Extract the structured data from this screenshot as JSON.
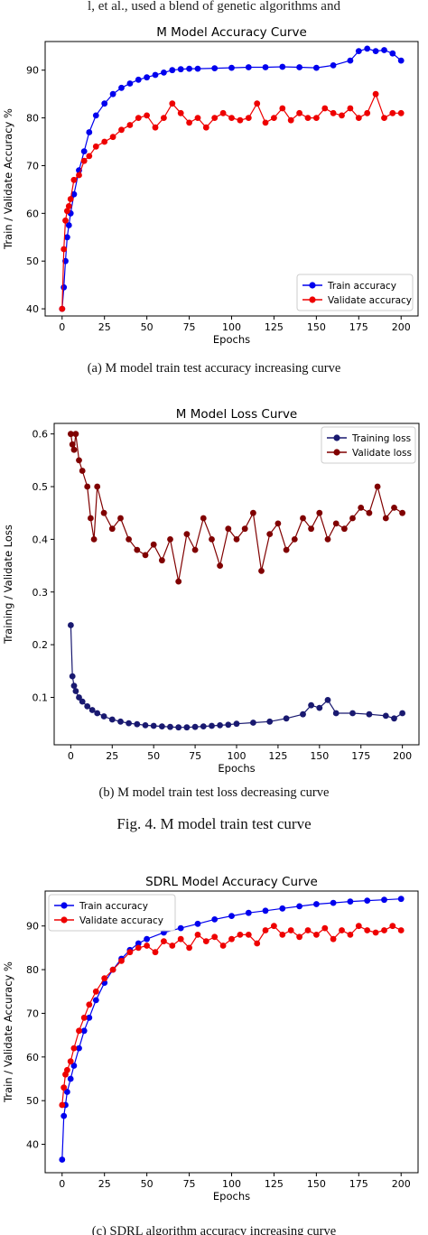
{
  "page": {
    "top_text": "l, et al., used a blend of genetic algorithms and"
  },
  "captions": {
    "a": "(a) M model train test accuracy increasing curve",
    "b": "(b) M model train test loss decreasing curve",
    "fig": "Fig. 4.   M model train test curve",
    "c": "(c) SDRL algorithm accuracy increasing curve"
  },
  "colors": {
    "train_accuracy": "#0000ee",
    "validate_accuracy": "#ee0000",
    "training_loss": "#191970",
    "validate_loss": "#800000"
  },
  "chart_data": [
    {
      "type": "line",
      "title": "M Model Accuracy Curve",
      "xlabel": "Epochs",
      "ylabel": "Train / Validate Accuracy %",
      "xlim": [
        -10,
        210
      ],
      "ylim": [
        38.5,
        96
      ],
      "xticks": [
        0,
        25,
        50,
        75,
        100,
        125,
        150,
        175,
        200
      ],
      "yticks": [
        40,
        50,
        60,
        70,
        80,
        90
      ],
      "legend_position": "lower-right",
      "grid": false,
      "series": [
        {
          "name": "Train accuracy",
          "color": "#0000ee",
          "x": [
            0,
            1,
            2,
            3,
            4,
            5,
            7,
            10,
            13,
            16,
            20,
            25,
            30,
            35,
            40,
            45,
            50,
            55,
            60,
            65,
            70,
            75,
            80,
            90,
            100,
            110,
            120,
            130,
            140,
            150,
            160,
            170,
            175,
            180,
            185,
            190,
            195,
            200
          ],
          "values": [
            40,
            44.5,
            50,
            55,
            57.5,
            60,
            64,
            69,
            73,
            77,
            80.5,
            83,
            85,
            86.3,
            87.2,
            88,
            88.5,
            89,
            89.5,
            90,
            90.2,
            90.3,
            90.3,
            90.4,
            90.5,
            90.6,
            90.6,
            90.7,
            90.6,
            90.5,
            91,
            92,
            94,
            94.5,
            94,
            94.2,
            93.5,
            92
          ]
        },
        {
          "name": "Validate accuracy",
          "color": "#ee0000",
          "x": [
            0,
            1,
            2,
            3,
            4,
            5,
            7,
            10,
            13,
            16,
            20,
            25,
            30,
            35,
            40,
            45,
            50,
            55,
            60,
            65,
            70,
            75,
            80,
            85,
            90,
            95,
            100,
            105,
            110,
            115,
            120,
            125,
            130,
            135,
            140,
            145,
            150,
            155,
            160,
            165,
            170,
            175,
            180,
            185,
            190,
            195,
            200
          ],
          "values": [
            40,
            52.5,
            58.5,
            60.5,
            61.5,
            63,
            67,
            68,
            71,
            72,
            74,
            75,
            76,
            77.5,
            78.5,
            80,
            80.5,
            78,
            80,
            83,
            81,
            79,
            80,
            78,
            80,
            81,
            80,
            79.5,
            80,
            83,
            79,
            80,
            82,
            79.5,
            81,
            80,
            80,
            82,
            81,
            80.5,
            82,
            80,
            81,
            85,
            80,
            81,
            81
          ]
        }
      ]
    },
    {
      "type": "line",
      "title": "M Model Loss Curve",
      "xlabel": "Epochs",
      "ylabel": "Training / Validate Loss",
      "xlim": [
        -10,
        210
      ],
      "ylim": [
        0.01,
        0.62
      ],
      "xticks": [
        0,
        25,
        50,
        75,
        100,
        125,
        150,
        175,
        200
      ],
      "yticks": [
        0.1,
        0.2,
        0.3,
        0.4,
        0.5,
        0.6
      ],
      "legend_position": "top-right",
      "grid": false,
      "series": [
        {
          "name": "Training loss",
          "color": "#191970",
          "x": [
            0,
            1,
            2,
            3,
            5,
            7,
            10,
            13,
            16,
            20,
            25,
            30,
            35,
            40,
            45,
            50,
            55,
            60,
            65,
            70,
            75,
            80,
            85,
            90,
            95,
            100,
            110,
            120,
            130,
            140,
            145,
            150,
            155,
            160,
            170,
            180,
            190,
            195,
            200
          ],
          "values": [
            0.237,
            0.14,
            0.122,
            0.112,
            0.1,
            0.092,
            0.083,
            0.076,
            0.07,
            0.064,
            0.058,
            0.054,
            0.051,
            0.049,
            0.047,
            0.046,
            0.045,
            0.044,
            0.043,
            0.043,
            0.044,
            0.045,
            0.046,
            0.047,
            0.048,
            0.05,
            0.052,
            0.054,
            0.06,
            0.068,
            0.085,
            0.08,
            0.095,
            0.07,
            0.07,
            0.068,
            0.065,
            0.06,
            0.07
          ]
        },
        {
          "name": "Validate loss",
          "color": "#800000",
          "x": [
            0,
            1,
            2,
            3,
            5,
            7,
            10,
            12,
            14,
            16,
            20,
            25,
            30,
            35,
            40,
            45,
            50,
            55,
            60,
            65,
            70,
            75,
            80,
            85,
            90,
            95,
            100,
            105,
            110,
            115,
            120,
            125,
            130,
            135,
            140,
            145,
            150,
            155,
            160,
            165,
            170,
            175,
            180,
            185,
            190,
            195,
            200
          ],
          "values": [
            0.6,
            0.58,
            0.57,
            0.6,
            0.55,
            0.53,
            0.5,
            0.44,
            0.4,
            0.5,
            0.45,
            0.42,
            0.44,
            0.4,
            0.38,
            0.37,
            0.39,
            0.36,
            0.4,
            0.32,
            0.41,
            0.38,
            0.44,
            0.4,
            0.35,
            0.42,
            0.4,
            0.42,
            0.45,
            0.34,
            0.41,
            0.43,
            0.38,
            0.4,
            0.44,
            0.42,
            0.45,
            0.4,
            0.43,
            0.42,
            0.44,
            0.46,
            0.45,
            0.5,
            0.44,
            0.46,
            0.45
          ]
        }
      ]
    },
    {
      "type": "line",
      "title": "SDRL Model Accuracy Curve",
      "xlabel": "Epochs",
      "ylabel": "Train / Validate Accuracy %",
      "xlim": [
        -10,
        210
      ],
      "ylim": [
        33.5,
        98
      ],
      "xticks": [
        0,
        25,
        50,
        75,
        100,
        125,
        150,
        175,
        200
      ],
      "yticks": [
        40,
        50,
        60,
        70,
        80,
        90
      ],
      "legend_position": "top-left",
      "grid": false,
      "series": [
        {
          "name": "Train accuracy",
          "color": "#0000ee",
          "x": [
            0,
            1,
            2,
            3,
            5,
            7,
            10,
            13,
            16,
            20,
            25,
            30,
            35,
            40,
            45,
            50,
            60,
            70,
            80,
            90,
            100,
            110,
            120,
            130,
            140,
            150,
            160,
            170,
            180,
            190,
            200
          ],
          "values": [
            36.5,
            46.5,
            49,
            52,
            55,
            58,
            62,
            66,
            69,
            73,
            77,
            80,
            82.5,
            84.5,
            86,
            87,
            88.5,
            89.5,
            90.5,
            91.5,
            92.3,
            93,
            93.5,
            94,
            94.5,
            95,
            95.3,
            95.6,
            95.8,
            96,
            96.2
          ]
        },
        {
          "name": "Validate accuracy",
          "color": "#ee0000",
          "x": [
            0,
            1,
            2,
            3,
            5,
            7,
            10,
            13,
            16,
            20,
            25,
            30,
            35,
            40,
            45,
            50,
            55,
            60,
            65,
            70,
            75,
            80,
            85,
            90,
            95,
            100,
            105,
            110,
            115,
            120,
            125,
            130,
            135,
            140,
            145,
            150,
            155,
            160,
            165,
            170,
            175,
            180,
            185,
            190,
            195,
            200
          ],
          "values": [
            49,
            53,
            56,
            57,
            59,
            62,
            66,
            69,
            72,
            75,
            78,
            80,
            82,
            84,
            85,
            85.5,
            84,
            86.5,
            85.5,
            87,
            85,
            88,
            86.5,
            87.5,
            85.5,
            87,
            88,
            88,
            86,
            89,
            90,
            88,
            89,
            87.5,
            89,
            88,
            89.5,
            87,
            89,
            88,
            90,
            89,
            88.5,
            89,
            90,
            89
          ]
        }
      ]
    }
  ]
}
